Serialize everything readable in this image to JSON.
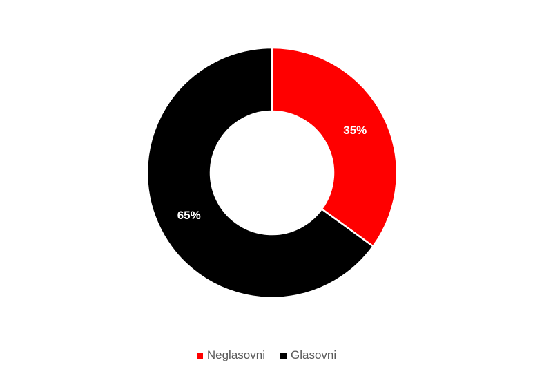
{
  "chart_data": {
    "type": "pie",
    "variant": "donut",
    "categories": [
      "Neglasovni",
      "Glasovni"
    ],
    "values": [
      35,
      65
    ],
    "labels": [
      "35%",
      "65%"
    ],
    "colors": [
      "#ff0000",
      "#000000"
    ],
    "title": "",
    "legend": "bottom"
  }
}
